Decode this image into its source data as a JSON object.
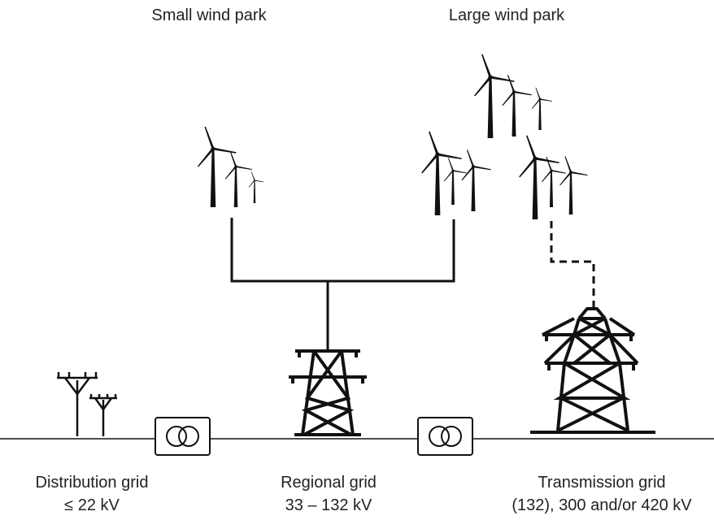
{
  "parks": [
    {
      "label": "Small wind park"
    },
    {
      "label": "Large wind park"
    }
  ],
  "grids": [
    {
      "name": "Distribution grid",
      "voltage": "≤ 22 kV"
    },
    {
      "name": "Regional grid",
      "voltage": "33 – 132 kV"
    },
    {
      "name": "Transmission grid",
      "voltage": "(132), 300 and/or 420 kV"
    }
  ]
}
